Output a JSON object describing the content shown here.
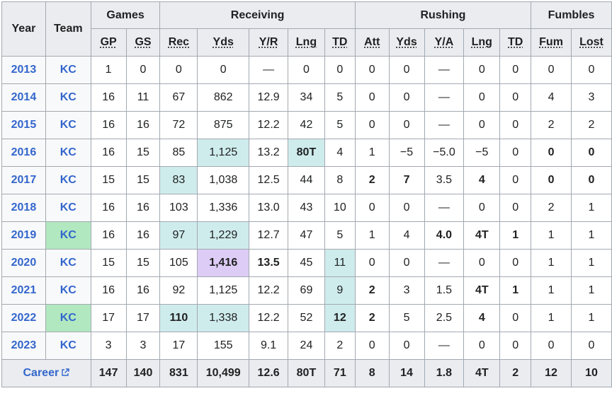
{
  "header": {
    "year": "Year",
    "team": "Team",
    "groups": [
      "Games",
      "Receiving",
      "Rushing",
      "Fumbles"
    ],
    "columns": [
      "GP",
      "GS",
      "Rec",
      "Yds",
      "Y/R",
      "Lng",
      "TD",
      "Att",
      "Yds",
      "Y/A",
      "Lng",
      "TD",
      "Fum",
      "Lost"
    ]
  },
  "rows": [
    {
      "year": "2013",
      "team": "KC",
      "champ": false,
      "cells": [
        "1",
        "0",
        "0",
        "0",
        "—",
        "0",
        "0",
        "0",
        "0",
        "—",
        "0",
        "0",
        "0",
        "0"
      ]
    },
    {
      "year": "2014",
      "team": "KC",
      "champ": false,
      "cells": [
        "16",
        "11",
        "67",
        "862",
        "12.9",
        "34",
        "5",
        "0",
        "0",
        "—",
        "0",
        "0",
        "4",
        "3"
      ]
    },
    {
      "year": "2015",
      "team": "KC",
      "champ": false,
      "cells": [
        "16",
        "16",
        "72",
        "875",
        "12.2",
        "42",
        "5",
        "0",
        "0",
        "—",
        "0",
        "0",
        "2",
        "2"
      ]
    },
    {
      "year": "2016",
      "team": "KC",
      "champ": false,
      "cells": [
        "16",
        "15",
        "85",
        "1,125",
        "13.2",
        "80T",
        "4",
        "1",
        "−5",
        "−5.0",
        "−5",
        "0",
        "0",
        "0"
      ]
    },
    {
      "year": "2017",
      "team": "KC",
      "champ": false,
      "cells": [
        "15",
        "15",
        "83",
        "1,038",
        "12.5",
        "44",
        "8",
        "2",
        "7",
        "3.5",
        "4",
        "0",
        "0",
        "0"
      ]
    },
    {
      "year": "2018",
      "team": "KC",
      "champ": false,
      "cells": [
        "16",
        "16",
        "103",
        "1,336",
        "13.0",
        "43",
        "10",
        "0",
        "0",
        "—",
        "0",
        "0",
        "2",
        "1"
      ]
    },
    {
      "year": "2019",
      "team": "KC",
      "champ": true,
      "cells": [
        "16",
        "16",
        "97",
        "1,229",
        "12.7",
        "47",
        "5",
        "1",
        "4",
        "4.0",
        "4T",
        "1",
        "1",
        "1"
      ]
    },
    {
      "year": "2020",
      "team": "KC",
      "champ": false,
      "cells": [
        "15",
        "15",
        "105",
        "1,416",
        "13.5",
        "45",
        "11",
        "0",
        "0",
        "—",
        "0",
        "0",
        "1",
        "1"
      ]
    },
    {
      "year": "2021",
      "team": "KC",
      "champ": false,
      "cells": [
        "16",
        "16",
        "92",
        "1,125",
        "12.2",
        "69",
        "9",
        "2",
        "3",
        "1.5",
        "4T",
        "1",
        "1",
        "1"
      ]
    },
    {
      "year": "2022",
      "team": "KC",
      "champ": true,
      "cells": [
        "17",
        "17",
        "110",
        "1,338",
        "12.2",
        "52",
        "12",
        "2",
        "5",
        "2.5",
        "4",
        "0",
        "1",
        "1"
      ]
    },
    {
      "year": "2023",
      "team": "KC",
      "champ": false,
      "cells": [
        "3",
        "3",
        "17",
        "155",
        "9.1",
        "24",
        "2",
        "0",
        "0",
        "—",
        "0",
        "0",
        "0",
        "0"
      ]
    }
  ],
  "career": {
    "label": "Career",
    "cells": [
      "147",
      "140",
      "831",
      "10,499",
      "12.6",
      "80T",
      "71",
      "8",
      "14",
      "1.8",
      "4T",
      "2",
      "12",
      "10"
    ]
  },
  "colors": {
    "link": "#3366cc",
    "header_bg": "#eaecf0",
    "teal_highlight": "#cfeced",
    "purple_highlight": "#ddccf5",
    "champion_green": "#b1e8c0"
  },
  "icons": [
    "external-link-icon"
  ]
}
